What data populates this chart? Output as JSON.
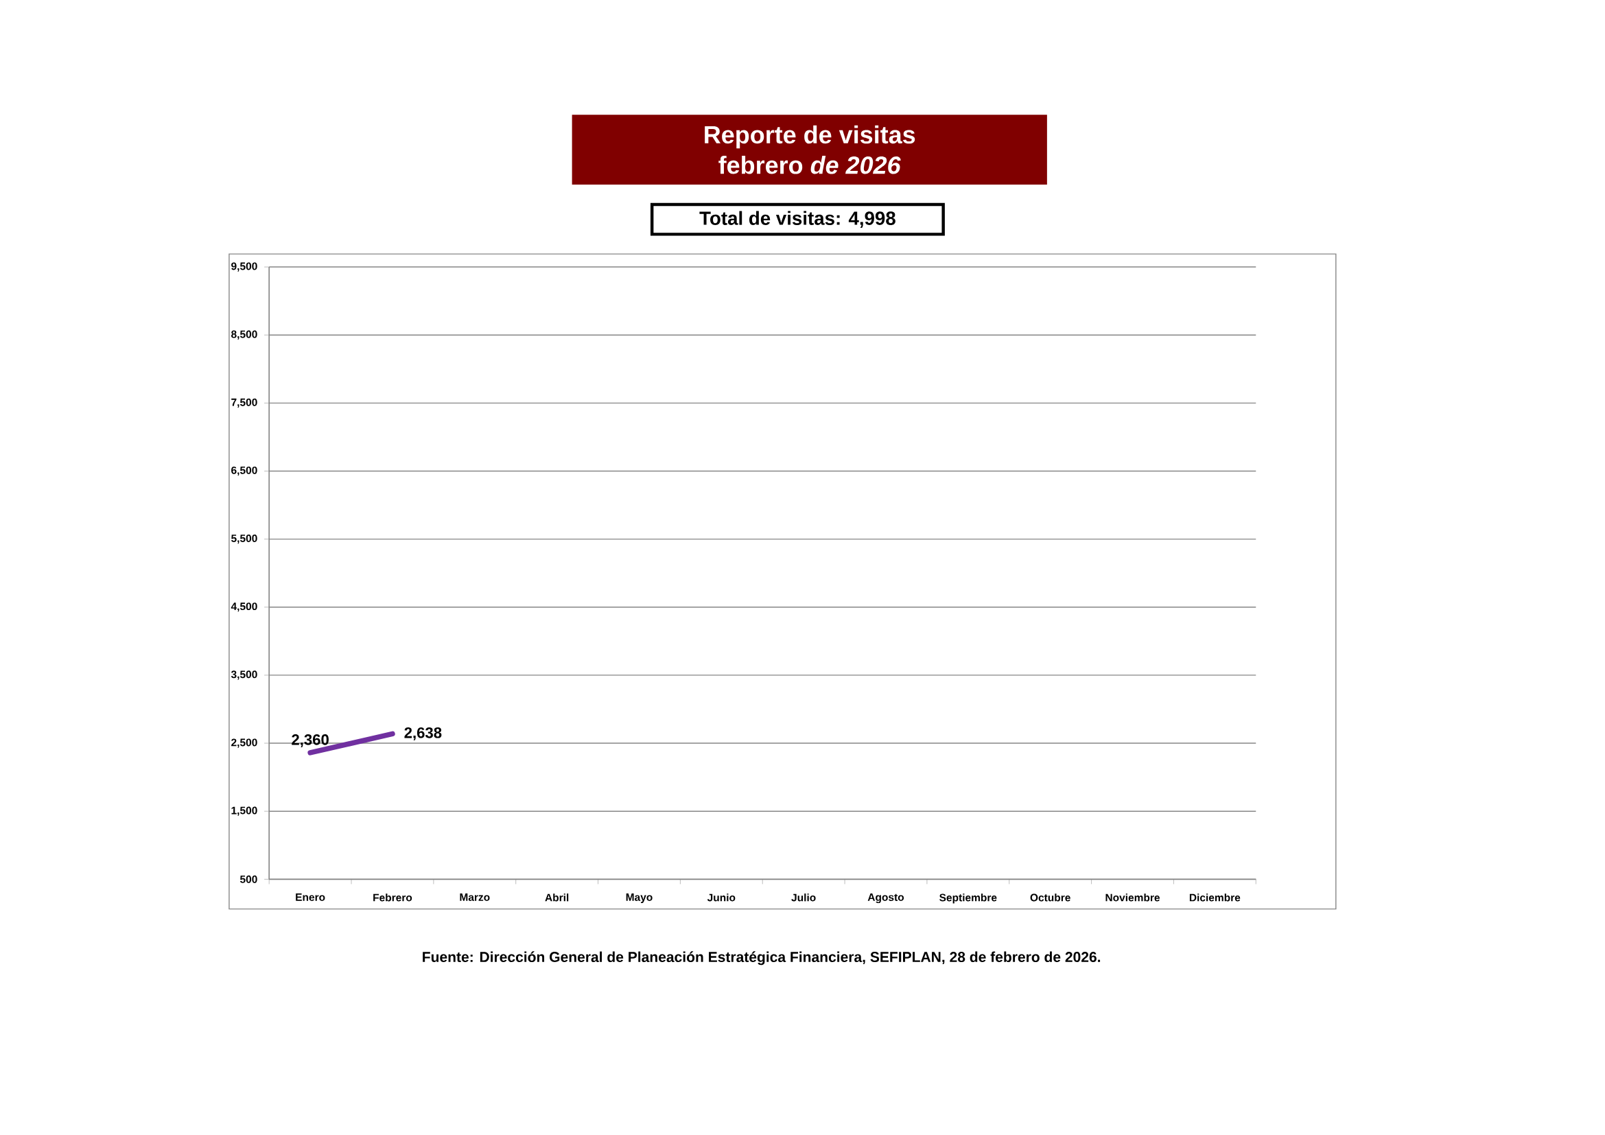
{
  "chart_data": {
    "type": "line",
    "title": "Reporte de visitas febrero *de 2026*",
    "subtitle": "Total de visitas: 4,998",
    "categories": [
      "Enero",
      "Febrero",
      "Marzo",
      "Abril",
      "Mayo",
      "Junio",
      "Julio",
      "Agosto",
      "Septiembre",
      "Octubre",
      "Noviembre",
      "Diciembre"
    ],
    "values": [
      2360,
      2638,
      null,
      null,
      null,
      null,
      null,
      null,
      null,
      null,
      null,
      null
    ],
    "value_labels": [
      "2,360",
      "2,638",
      null,
      null,
      null,
      null,
      null,
      null,
      null,
      null,
      null,
      null
    ],
    "color": "#7030a0",
    "ylim": [
      500,
      9500
    ],
    "yticks": [
      500,
      {
        "value": 1500,
        "label": "1,500"
      },
      {
        "value": 2500,
        "label": "2,500"
      },
      {
        "value": 3500,
        "label": "3,500"
      },
      {
        "value": 4500,
        "label": "4,500"
      },
      {
        "value": 5500,
        "label": "5,500"
      },
      {
        "value": 6500,
        "label": "6,500"
      },
      {
        "value": 7500,
        "label": "7,500"
      },
      {
        "value": 8500,
        "label": "8,500"
      },
      {
        "value": 9500,
        "label": "9,500"
      }
    ],
    "grid": "y",
    "marker": "none",
    "line_style": "solid",
    "annotations": [
      "Fuente: Dirección General de Planeación Estratégica Financiera, SEFIPLAN, 28 de febrero de 2026."
    ]
  }
}
